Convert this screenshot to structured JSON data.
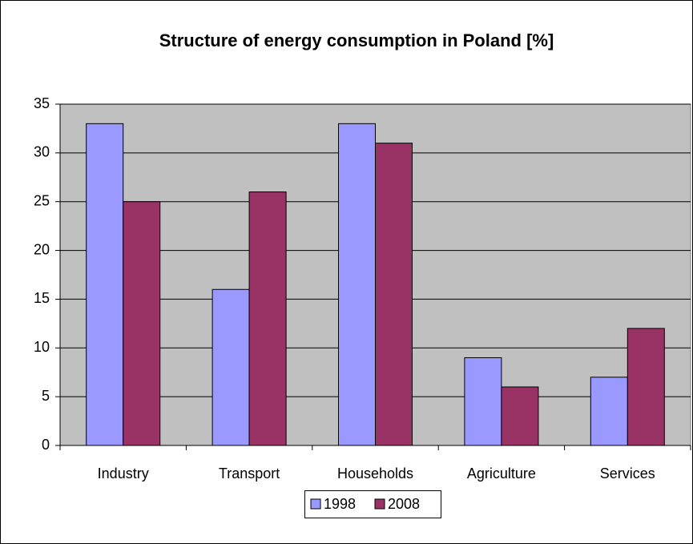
{
  "chart_data": {
    "type": "bar",
    "title": "Structure of energy consumption in Poland [%]",
    "categories": [
      "Industry",
      "Transport",
      "Households",
      "Agriculture",
      "Services"
    ],
    "series": [
      {
        "name": "1998",
        "color": "#9999ff",
        "values": [
          33,
          16,
          33,
          9,
          7
        ]
      },
      {
        "name": "2008",
        "color": "#993366",
        "values": [
          25,
          26,
          31,
          6,
          12
        ]
      }
    ],
    "ylim": [
      0,
      35
    ],
    "yticks": [
      0,
      5,
      10,
      15,
      20,
      25,
      30,
      35
    ],
    "grid": true,
    "legend": "bottom"
  }
}
